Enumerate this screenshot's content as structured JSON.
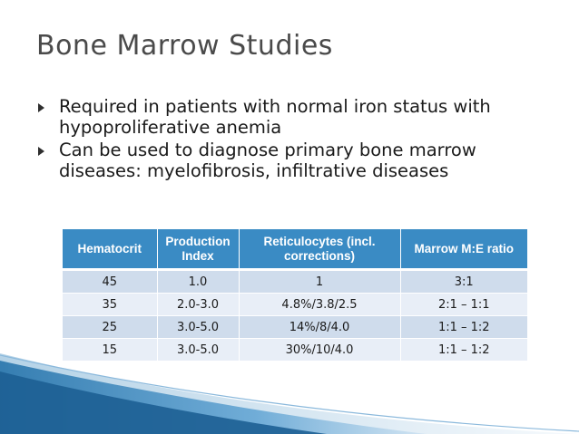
{
  "slide": {
    "title": "Bone Marrow Studies",
    "bullets": [
      "Required in patients with normal iron status with hypoproliferative anemia",
      "Can be used to diagnose primary bone marrow diseases: myelofibrosis, infiltrative diseases"
    ]
  },
  "table": {
    "headers": [
      "Hematocrit",
      "Production Index",
      "Reticulocytes (incl. corrections)",
      "Marrow M:E ratio"
    ],
    "rows": [
      [
        "45",
        "1.0",
        "1",
        "3:1"
      ],
      [
        "35",
        "2.0-3.0",
        "4.8%/3.8/2.5",
        "2:1 – 1:1"
      ],
      [
        "25",
        "3.0-5.0",
        "14%/8/4.0",
        "1:1 – 1:2"
      ],
      [
        "15",
        "3.0-5.0",
        "30%/10/4.0",
        "1:1 – 1:2"
      ]
    ]
  },
  "colors": {
    "header": "#3a8bc4",
    "row_odd": "#cfdcec",
    "row_even": "#e8eef7",
    "accent": "#2f7fb8"
  }
}
